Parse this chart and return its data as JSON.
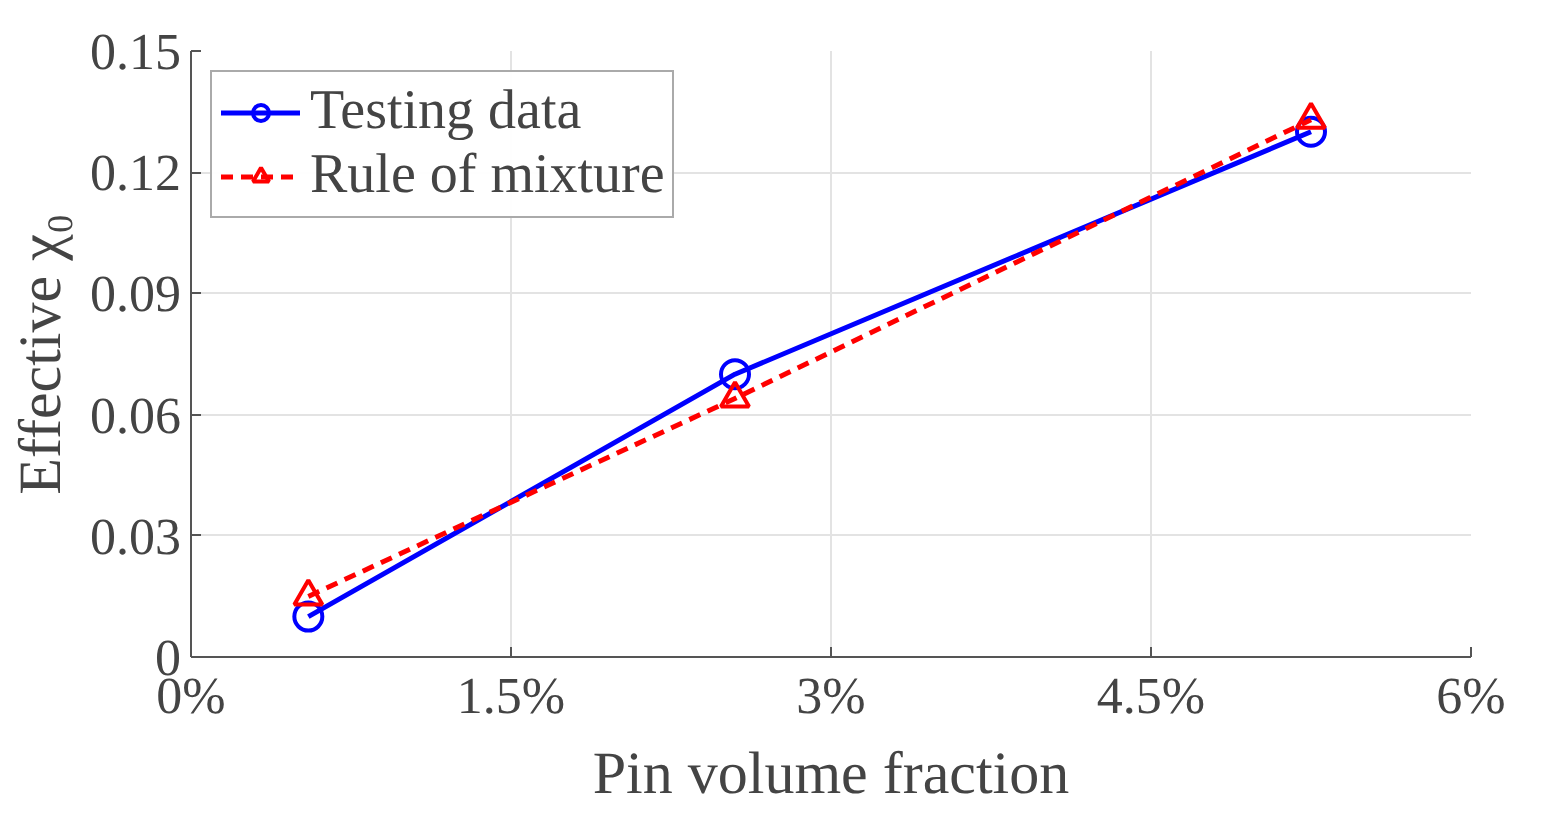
{
  "chart_data": {
    "type": "line",
    "xlabel": "Pin volume fraction",
    "ylabel": "Effective χ₀",
    "x": [
      0.55,
      2.55,
      5.25
    ],
    "series": [
      {
        "name": "Testing data",
        "color": "#0000ff",
        "values": [
          0.01,
          0.07,
          0.13
        ],
        "marker": "circle",
        "line_style": "solid"
      },
      {
        "name": "Rule of mixture",
        "color": "#ff0000",
        "values": [
          0.015,
          0.064,
          0.133
        ],
        "marker": "triangle",
        "line_style": "dashed"
      }
    ],
    "xlim": [
      0,
      6
    ],
    "xticks": [
      {
        "value": 0,
        "label": "0%"
      },
      {
        "value": 1.5,
        "label": "1.5%"
      },
      {
        "value": 3,
        "label": "3%"
      },
      {
        "value": 4.5,
        "label": "4.5%"
      },
      {
        "value": 6,
        "label": "6%"
      }
    ],
    "ylim": [
      0,
      0.15
    ],
    "yticks": [
      0,
      0.03,
      0.06,
      0.09,
      0.12,
      0.15
    ],
    "grid": true,
    "legend": "top left"
  }
}
